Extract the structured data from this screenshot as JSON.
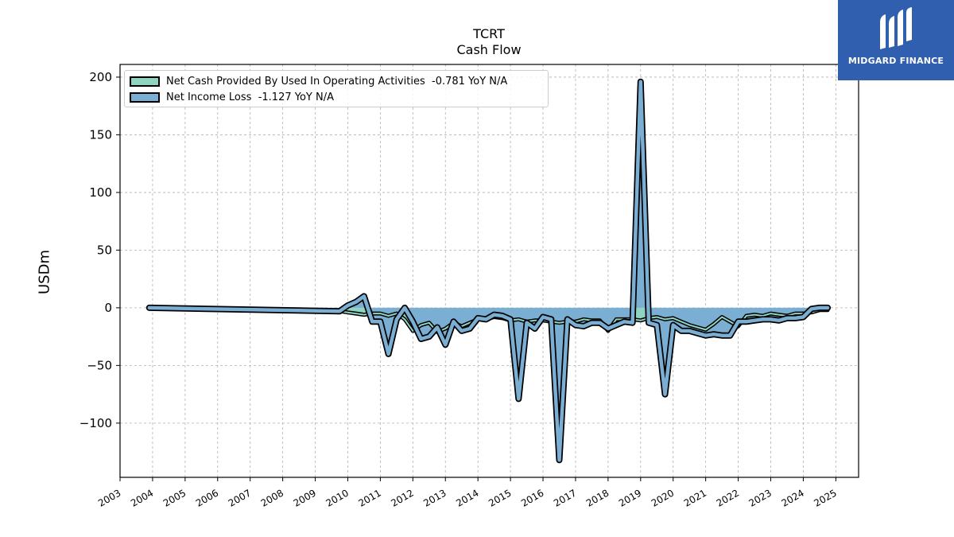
{
  "header": {
    "ticker": "TCRT",
    "subtitle": "Cash Flow"
  },
  "logo": {
    "text": "MIDGARD FINANCE",
    "color": "#2f5fae"
  },
  "chart_data": {
    "type": "area",
    "ylabel": "USDm",
    "ylim": [
      -147,
      211
    ],
    "xlim": [
      2003.0,
      2025.7
    ],
    "grid": true,
    "legend_position": "top-left",
    "x_ticks": [
      "2003",
      "2004",
      "2005",
      "2006",
      "2007",
      "2008",
      "2009",
      "2010",
      "2011",
      "2012",
      "2013",
      "2014",
      "2015",
      "2016",
      "2017",
      "2018",
      "2019",
      "2020",
      "2021",
      "2022",
      "2023",
      "2024",
      "2025"
    ],
    "y_ticks": [
      -100,
      -50,
      0,
      50,
      100,
      150,
      200
    ],
    "series": [
      {
        "name": "Net Cash Provided By Used In Operating Activities  -0.781 YoY N/A",
        "color": "#8fd3c1",
        "x": [
          2009.75,
          2010.0,
          2010.25,
          2010.5,
          2010.75,
          2011.0,
          2011.25,
          2011.5,
          2011.75,
          2012.0,
          2012.25,
          2012.5,
          2012.75,
          2013.0,
          2013.25,
          2013.5,
          2013.75,
          2014.0,
          2014.25,
          2014.5,
          2014.75,
          2015.0,
          2015.25,
          2015.5,
          2015.75,
          2016.0,
          2016.25,
          2016.5,
          2016.75,
          2017.0,
          2017.25,
          2017.5,
          2017.75,
          2018.0,
          2018.25,
          2018.5,
          2018.75,
          2019.0,
          2019.25,
          2019.5,
          2019.75,
          2020.0,
          2020.25,
          2020.5,
          2020.75,
          2021.0,
          2021.25,
          2021.5,
          2021.75,
          2022.0,
          2022.25,
          2022.5,
          2022.75,
          2023.0,
          2023.25,
          2023.5,
          2023.75,
          2024.0,
          2024.25,
          2024.5,
          2024.75
        ],
        "values": [
          -3,
          -4,
          -5,
          -6,
          -5,
          -5,
          -7,
          -5,
          -10,
          -20,
          -15,
          -13,
          -21,
          -18,
          -13,
          -16,
          -13,
          -10,
          -10,
          -8,
          -9,
          -11,
          -10,
          -12,
          -11,
          -11,
          -12,
          -13,
          -12,
          -12,
          -10,
          -11,
          -11,
          -20,
          -10,
          -10,
          -10,
          -11,
          -9,
          -8,
          -10,
          -9,
          -12,
          -15,
          -17,
          -19,
          -14,
          -8,
          -12,
          -16,
          -7,
          -6,
          -7,
          -5,
          -6,
          -7,
          -5,
          -5,
          -4,
          -2,
          -2
        ]
      },
      {
        "name": "Net Income Loss  -1.127 YoY N/A",
        "color": "#7aaed3",
        "x": [
          2003.9,
          2009.75,
          2010.0,
          2010.25,
          2010.5,
          2010.75,
          2011.0,
          2011.25,
          2011.5,
          2011.75,
          2012.0,
          2012.25,
          2012.5,
          2012.75,
          2013.0,
          2013.25,
          2013.5,
          2013.75,
          2014.0,
          2014.25,
          2014.5,
          2014.75,
          2015.0,
          2015.25,
          2015.5,
          2015.75,
          2016.0,
          2016.25,
          2016.5,
          2016.75,
          2017.0,
          2017.25,
          2017.5,
          2017.75,
          2018.0,
          2018.25,
          2018.5,
          2018.75,
          2019.0,
          2019.25,
          2019.5,
          2019.75,
          2020.0,
          2020.25,
          2020.5,
          2020.75,
          2021.0,
          2021.25,
          2021.5,
          2021.75,
          2022.0,
          2022.25,
          2022.5,
          2022.75,
          2023.0,
          2023.25,
          2023.5,
          2023.75,
          2024.0,
          2024.25,
          2024.5,
          2024.75
        ],
        "values": [
          0,
          -3,
          2,
          5,
          10,
          -12,
          -12,
          -40,
          -10,
          0,
          -12,
          -27,
          -25,
          -17,
          -32,
          -12,
          -20,
          -18,
          -9,
          -10,
          -6,
          -7,
          -10,
          -79,
          -13,
          -18,
          -8,
          -10,
          -132,
          -10,
          -15,
          -16,
          -13,
          -13,
          -18,
          -15,
          -12,
          -13,
          196,
          -13,
          -15,
          -75,
          -15,
          -20,
          -20,
          -22,
          -24,
          -23,
          -24,
          -24,
          -12,
          -12,
          -11,
          -10,
          -10,
          -11,
          -9,
          -9,
          -8,
          -1,
          0,
          0
        ]
      }
    ]
  }
}
